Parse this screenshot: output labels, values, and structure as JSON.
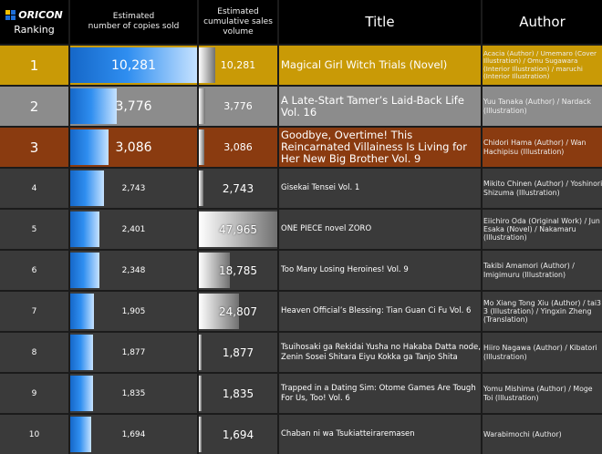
{
  "header": {
    "logo_text": "ORICON",
    "ranking_label": "Ranking",
    "copies_label_line1": "Estimated",
    "copies_label_line2": "number of copies sold",
    "cum_label_line1": "Estimated",
    "cum_label_line2": "cumulative sales",
    "cum_label_line3": "volume",
    "title_label": "Title",
    "author_label": "Author"
  },
  "colors": {
    "gold": "#c99a06",
    "silver": "#8c8c8c",
    "bronze": "#8a3b10",
    "normal": "#3a3a3a",
    "logo_blue": "#1e6fd9",
    "logo_yellow": "#f2c200"
  },
  "rows": [
    {
      "rank": "1",
      "copies": "10,281",
      "copies_value": 10281,
      "cumulative": "10,281",
      "cumulative_value": 10281,
      "title": "Magical Girl Witch Trials (Novel)",
      "author": "Acacia (Author) / Umemaro (Cover Illustration) / Omu Sugawara (Interior Illustration) / maruchi (Interior Illustration)",
      "tier": "gold"
    },
    {
      "rank": "2",
      "copies": "3,776",
      "copies_value": 3776,
      "cumulative": "3,776",
      "cumulative_value": 3776,
      "title": "A Late-Start Tamer’s Laid-Back Life Vol. 16",
      "author": "Yuu Tanaka (Author) / Nardack (Illustration)",
      "tier": "silver"
    },
    {
      "rank": "3",
      "copies": "3,086",
      "copies_value": 3086,
      "cumulative": "3,086",
      "cumulative_value": 3086,
      "title": "Goodbye, Overtime! This Reincarnated Villainess Is Living for Her New Big Brother Vol. 9",
      "author": "Chidori Hama (Author) / Wan Hachipisu (Illustration)",
      "tier": "bronze"
    },
    {
      "rank": "4",
      "copies": "2,743",
      "copies_value": 2743,
      "cumulative": "2,743",
      "cumulative_value": 2743,
      "title": "Gisekai Tensei Vol. 1",
      "author": "Mikito Chinen (Author) / Yoshinori Shizuma (Illustration)",
      "tier": "normal"
    },
    {
      "rank": "5",
      "copies": "2,401",
      "copies_value": 2401,
      "cumulative": "47,965",
      "cumulative_value": 47965,
      "title": "ONE PIECE novel ZORO",
      "author": "Eiichiro Oda (Original Work) / Jun Esaka (Novel) / Nakamaru (Illustration)",
      "tier": "normal"
    },
    {
      "rank": "6",
      "copies": "2,348",
      "copies_value": 2348,
      "cumulative": "18,785",
      "cumulative_value": 18785,
      "title": "Too Many Losing Heroines! Vol. 9",
      "author": "Takibi Amamori (Author) / Imigimuru (Illustration)",
      "tier": "normal"
    },
    {
      "rank": "7",
      "copies": "1,905",
      "copies_value": 1905,
      "cumulative": "24,807",
      "cumulative_value": 24807,
      "title": "Heaven Official’s Blessing: Tian Guan Ci Fu Vol. 6",
      "author": "Mo Xiang Tong Xiu (Author) / tai3 3 (Illustration) / Yingxin Zheng (Translation)",
      "tier": "normal"
    },
    {
      "rank": "8",
      "copies": "1,877",
      "copies_value": 1877,
      "cumulative": "1,877",
      "cumulative_value": 1877,
      "title": "Tsuihosaki ga Rekidai Yusha no Hakaba Datta node, Zenin Sosei Shitara Eiyu Kokka ga Tanjo Shita",
      "author": "Hiiro Nagawa (Author) / Kibatori (Illustration)",
      "tier": "normal"
    },
    {
      "rank": "9",
      "copies": "1,835",
      "copies_value": 1835,
      "cumulative": "1,835",
      "cumulative_value": 1835,
      "title": "Trapped in a Dating Sim: Otome Games Are Tough For Us, Too! Vol. 6",
      "author": "Yomu Mishima (Author) / Moge Toi (Illustration)",
      "tier": "normal"
    },
    {
      "rank": "10",
      "copies": "1,694",
      "copies_value": 1694,
      "cumulative": "1,694",
      "cumulative_value": 1694,
      "title": "Chaban ni wa Tsukiatteiraremasen",
      "author": "Warabimochi (Author)",
      "tier": "normal"
    }
  ]
}
